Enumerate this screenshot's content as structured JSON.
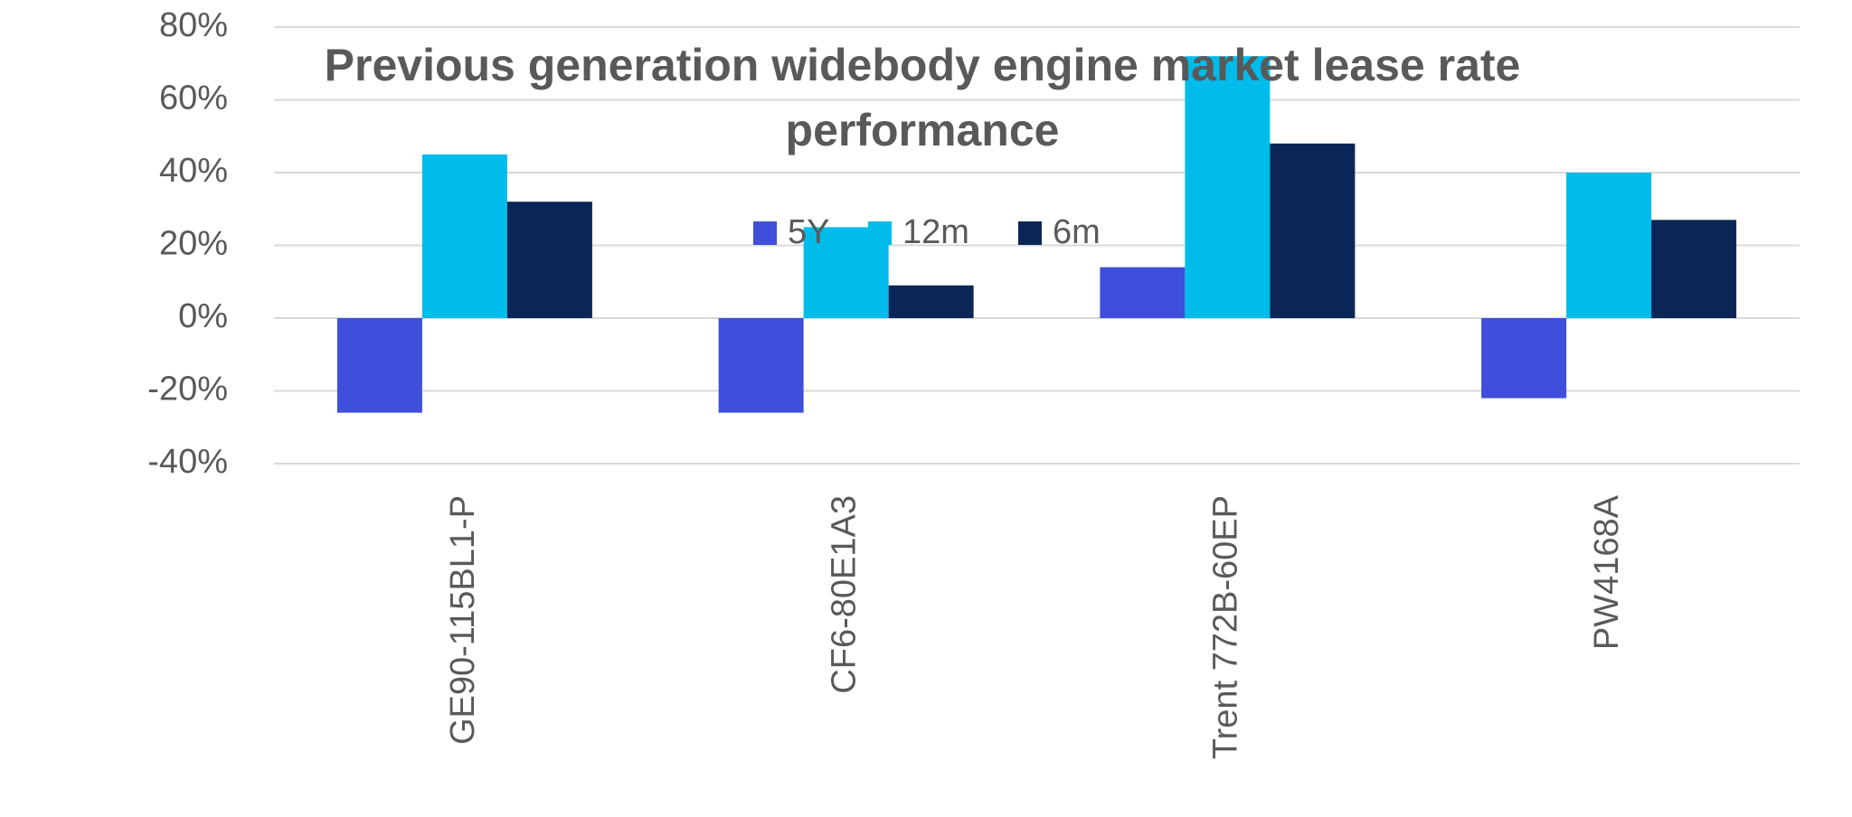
{
  "chart_data": {
    "type": "bar",
    "title": "Previous generation widebody engine market lease rate performance",
    "categories": [
      "GE90-115BL1-P",
      "CF6-80E1A3",
      "Trent 772B-60EP",
      "PW4168A"
    ],
    "series": [
      {
        "name": "5Y",
        "color": "#3f4fdb",
        "values": [
          -26,
          -26,
          14,
          -22
        ]
      },
      {
        "name": "12m",
        "color": "#00bceb",
        "values": [
          45,
          25,
          72,
          40
        ]
      },
      {
        "name": "6m",
        "color": "#0b2656",
        "values": [
          32,
          9,
          48,
          27
        ]
      }
    ],
    "ylim": [
      -40,
      80
    ],
    "yticks": [
      {
        "value": -40,
        "label": "-40%"
      },
      {
        "value": -20,
        "label": "-20%"
      },
      {
        "value": 0,
        "label": "0%"
      },
      {
        "value": 20,
        "label": "20%"
      },
      {
        "value": 40,
        "label": "40%"
      },
      {
        "value": 60,
        "label": "60%"
      },
      {
        "value": 80,
        "label": "80%"
      }
    ],
    "grid": true
  }
}
